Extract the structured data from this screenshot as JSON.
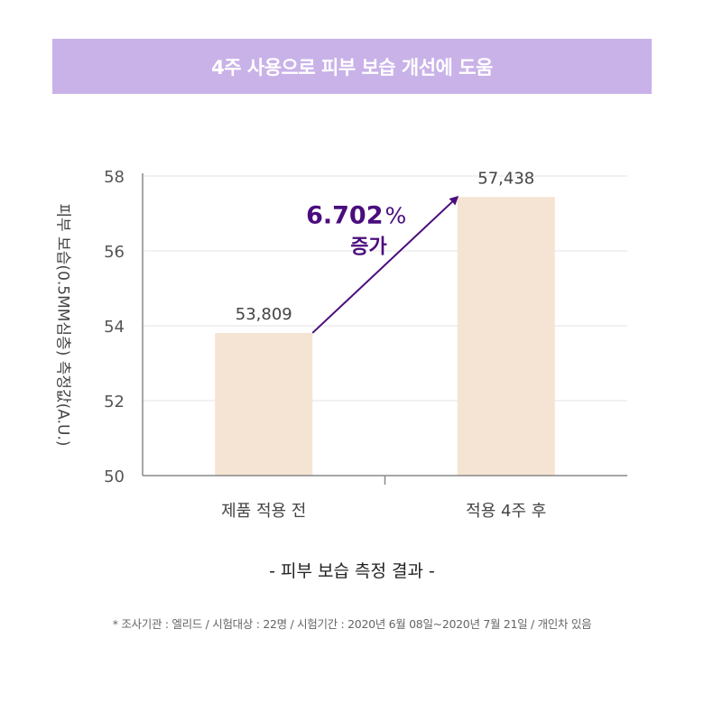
{
  "banner": {
    "title": "4주 사용으로 피부 보습 개선에 도움"
  },
  "chart_data": {
    "type": "bar",
    "categories": [
      "제품 적용 전",
      "적용 4주 후"
    ],
    "values": [
      53.809,
      57.438
    ],
    "data_labels": [
      "53,809",
      "57,438"
    ],
    "ylim": [
      50,
      58
    ],
    "yticks": [
      50,
      52,
      54,
      56,
      58
    ],
    "ylabel": "피부 보습(0.5MM심층) 측정값(A.U.)",
    "xlabel": "",
    "grid": true,
    "annotation": {
      "value": "6.702",
      "unit": "%",
      "text": "증가"
    },
    "colors": {
      "bar": "#f5e4d3",
      "arrow": "#4b0d7d",
      "annotation": "#4b0d7d",
      "grid": "#e3e3e3",
      "axis": "#888888"
    }
  },
  "subtitle": "-  피부 보습 측정 결과  -",
  "footnote": "*  조사기관 : 엘리드 / 시험대상 : 22명 / 시험기간 : 2020년 6월 08일~2020년 7월 21일 / 개인차 있음"
}
